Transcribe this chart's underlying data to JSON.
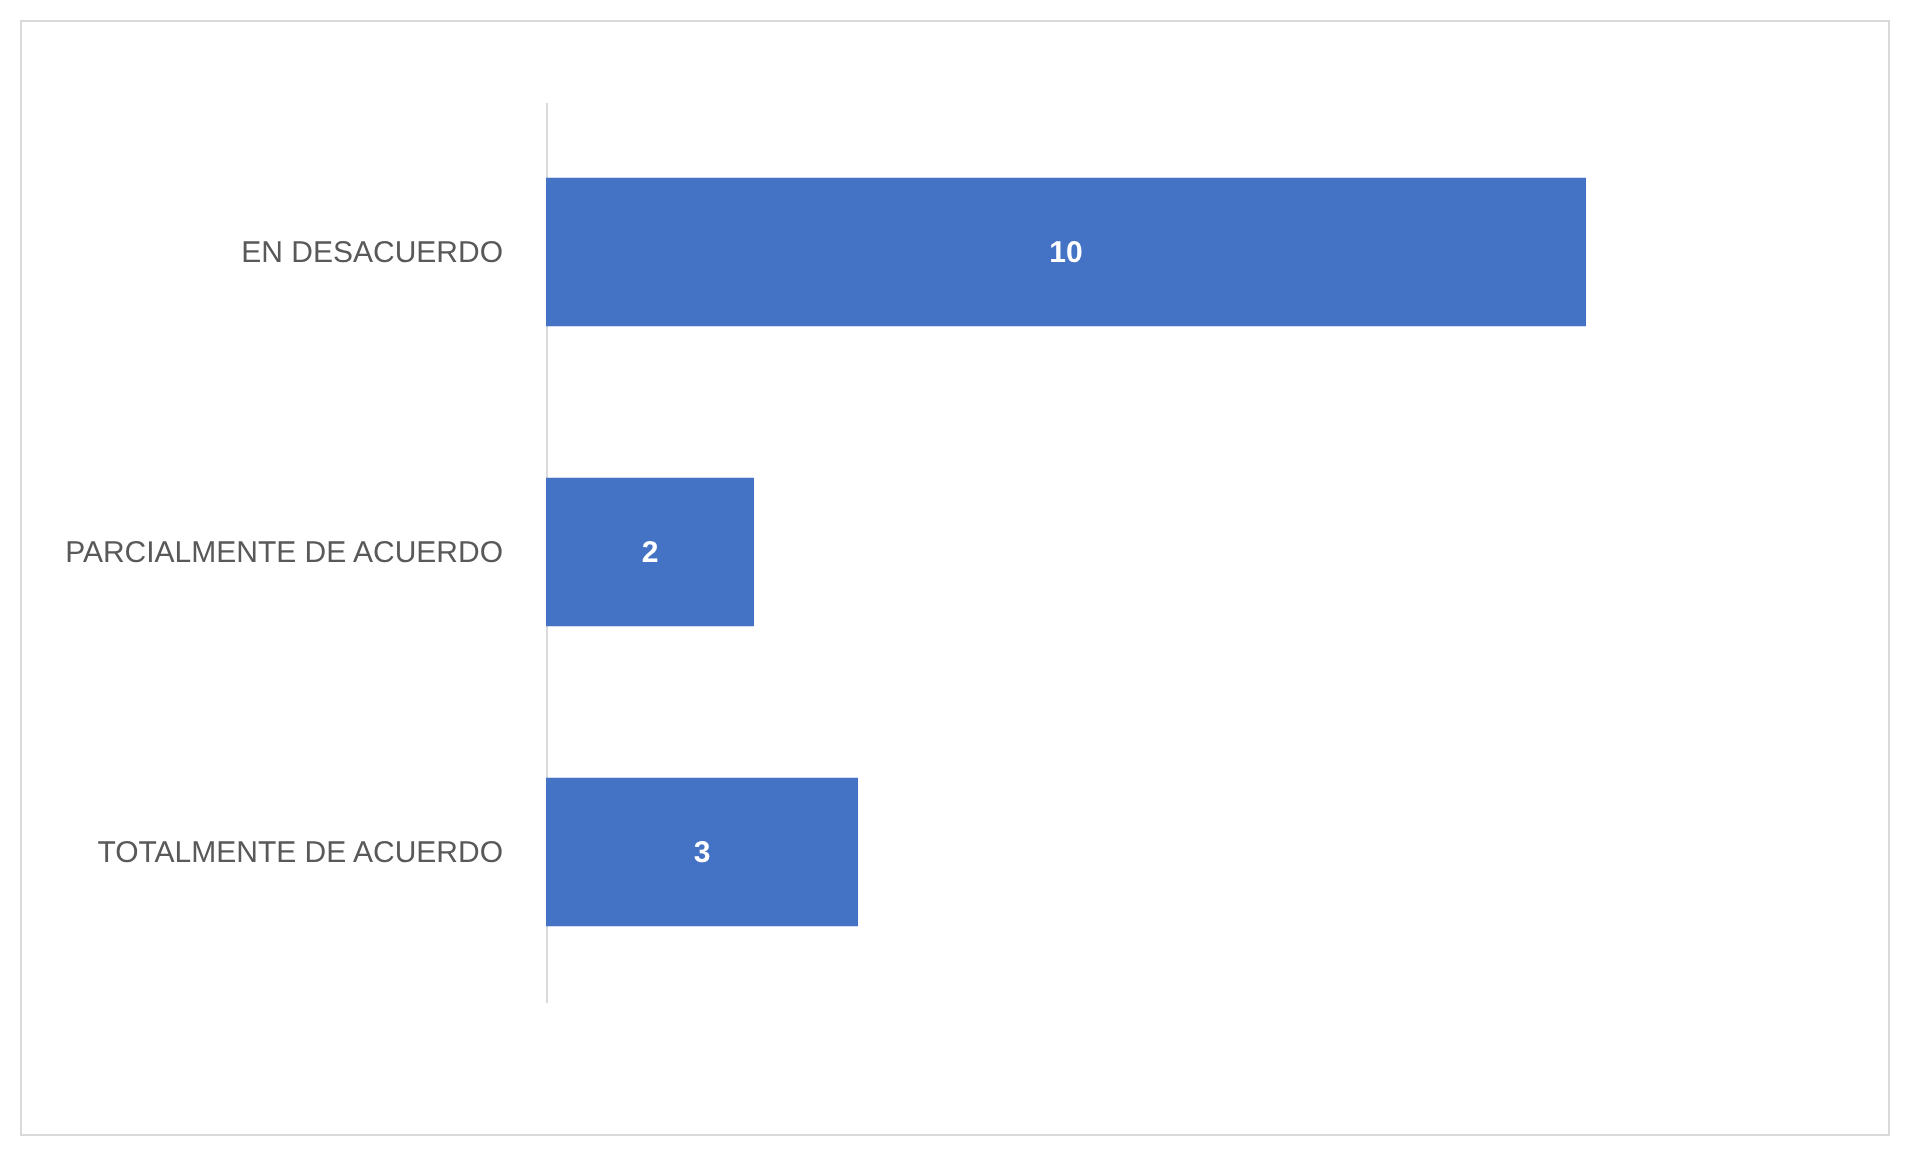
{
  "chart_data": {
    "type": "bar",
    "orientation": "horizontal",
    "categories": [
      "EN DESACUERDO",
      "PARCIALMENTE DE ACUERDO",
      "TOTALMENTE DE ACUERDO"
    ],
    "values": [
      10,
      2,
      3
    ],
    "color": "#4472c4",
    "data_labels": true
  }
}
